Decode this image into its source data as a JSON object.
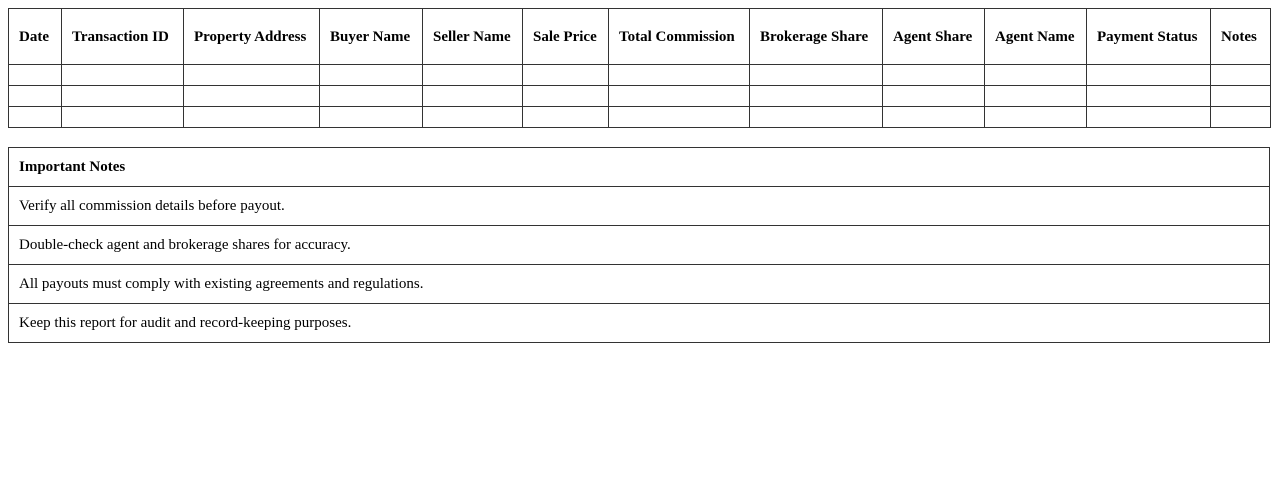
{
  "table": {
    "headers": [
      "Date",
      "Transaction ID",
      "Property Address",
      "Buyer Name",
      "Seller Name",
      "Sale Price",
      "Total Commission",
      "Brokerage Share",
      "Agent Share",
      "Agent Name",
      "Payment Status",
      "Notes"
    ],
    "rows": [
      [
        "",
        "",
        "",
        "",
        "",
        "",
        "",
        "",
        "",
        "",
        "",
        ""
      ],
      [
        "",
        "",
        "",
        "",
        "",
        "",
        "",
        "",
        "",
        "",
        "",
        ""
      ],
      [
        "",
        "",
        "",
        "",
        "",
        "",
        "",
        "",
        "",
        "",
        "",
        ""
      ]
    ]
  },
  "notes": {
    "title": "Important Notes",
    "items": [
      "Verify all commission details before payout.",
      "Double-check agent and brokerage shares for accuracy.",
      "All payouts must comply with existing agreements and regulations.",
      "Keep this report for audit and record-keeping purposes."
    ]
  }
}
